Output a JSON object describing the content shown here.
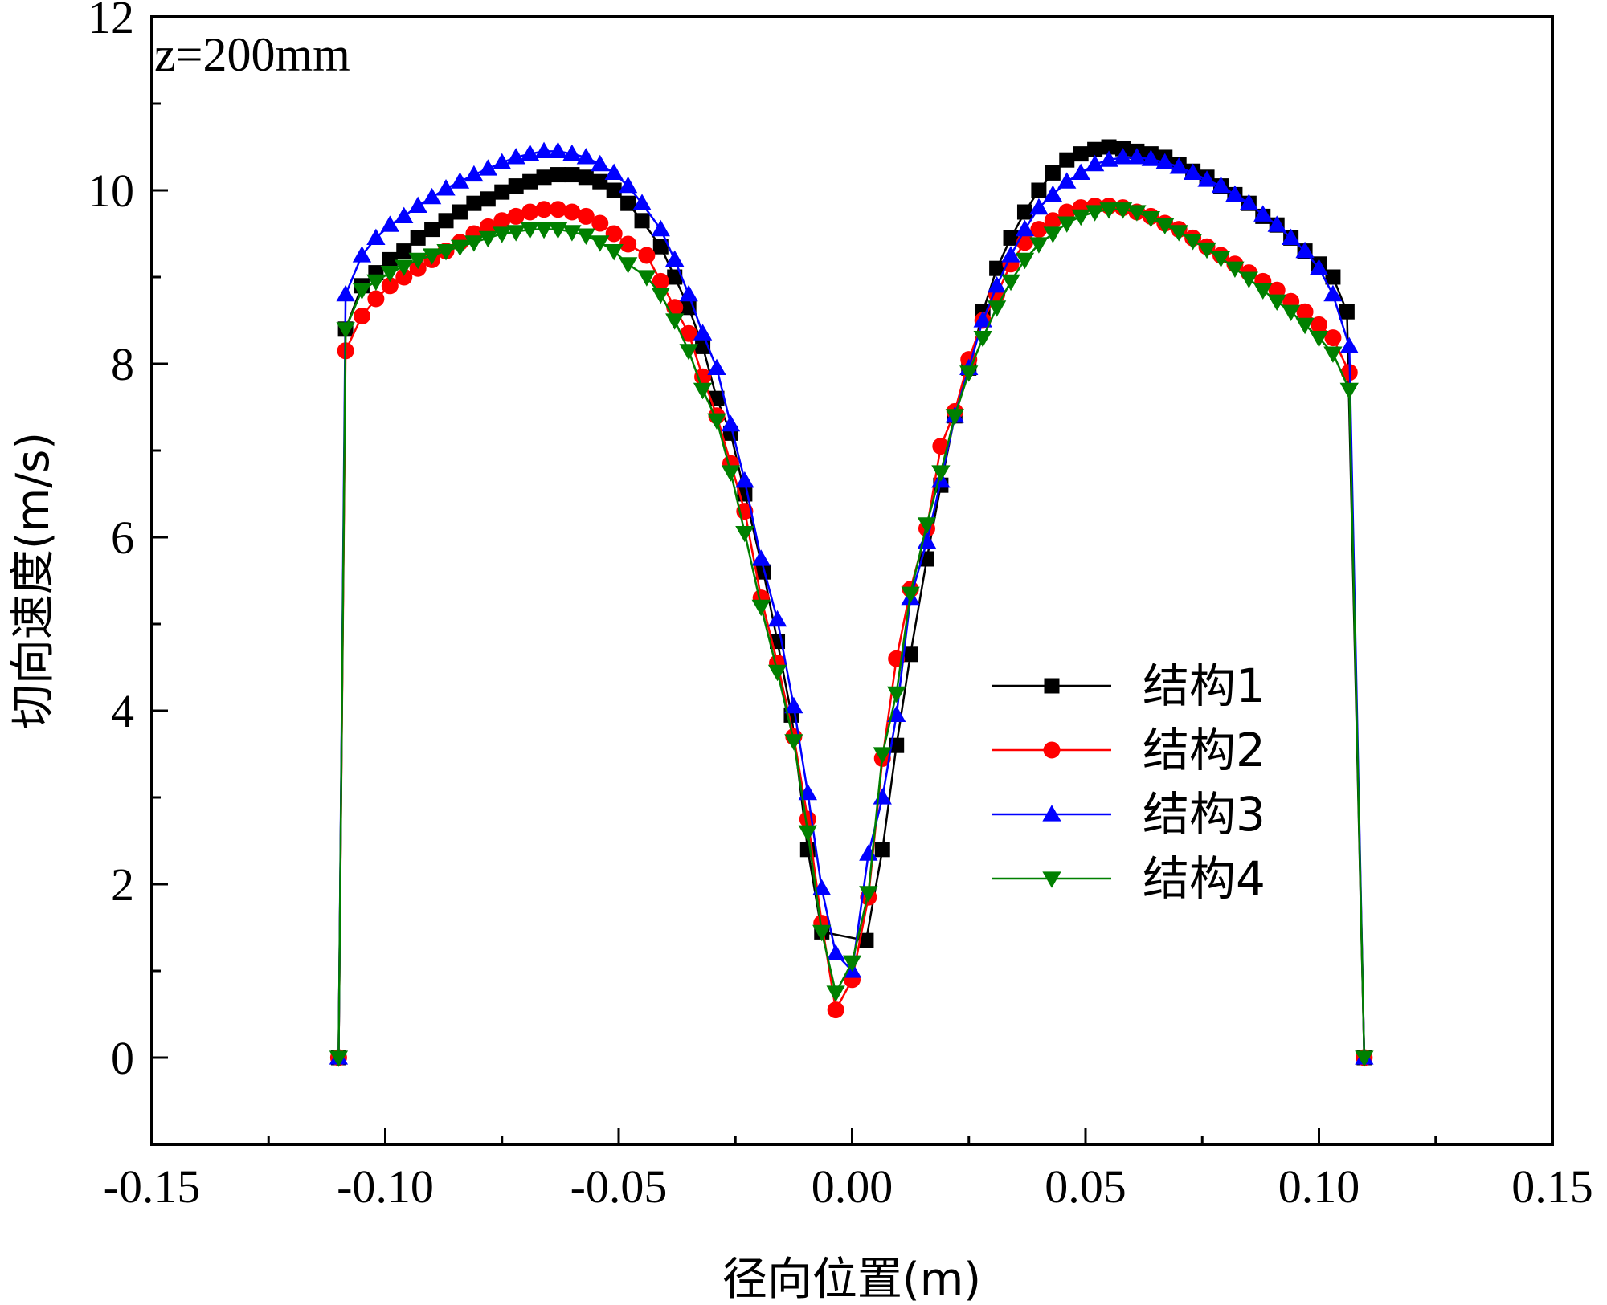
{
  "chart_data": {
    "type": "line",
    "title": "",
    "annotation": "z=200mm",
    "xlabel": "径向位置(m)",
    "ylabel": "切向速度(m/s)",
    "xlim": [
      -0.15,
      0.15
    ],
    "ylim": [
      -1,
      12
    ],
    "xticks": [
      -0.15,
      -0.1,
      -0.05,
      0.0,
      0.05,
      0.1,
      0.15
    ],
    "xtick_labels": [
      "-0.15",
      "-0.10",
      "-0.05",
      "0.00",
      "0.05",
      "0.10",
      "0.15"
    ],
    "yticks": [
      0,
      2,
      4,
      6,
      8,
      10,
      12
    ],
    "ytick_labels": [
      "0",
      "2",
      "4",
      "6",
      "8",
      "10",
      "12"
    ],
    "legend_position": "center-right",
    "series": [
      {
        "name": "结构1",
        "color": "#000000",
        "marker": "square",
        "points": [
          [
            -0.11,
            0
          ],
          [
            -0.1085,
            8.4
          ],
          [
            -0.105,
            8.9
          ],
          [
            -0.102,
            9.05
          ],
          [
            -0.099,
            9.2
          ],
          [
            -0.096,
            9.3
          ],
          [
            -0.093,
            9.45
          ],
          [
            -0.09,
            9.55
          ],
          [
            -0.087,
            9.65
          ],
          [
            -0.084,
            9.75
          ],
          [
            -0.081,
            9.85
          ],
          [
            -0.078,
            9.9
          ],
          [
            -0.075,
            9.98
          ],
          [
            -0.072,
            10.05
          ],
          [
            -0.069,
            10.1
          ],
          [
            -0.066,
            10.15
          ],
          [
            -0.063,
            10.18
          ],
          [
            -0.06,
            10.18
          ],
          [
            -0.057,
            10.15
          ],
          [
            -0.054,
            10.1
          ],
          [
            -0.051,
            10.0
          ],
          [
            -0.048,
            9.85
          ],
          [
            -0.045,
            9.65
          ],
          [
            -0.041,
            9.35
          ],
          [
            -0.038,
            9.0
          ],
          [
            -0.035,
            8.65
          ],
          [
            -0.032,
            8.2
          ],
          [
            -0.029,
            7.6
          ],
          [
            -0.026,
            7.2
          ],
          [
            -0.023,
            6.5
          ],
          [
            -0.019,
            5.6
          ],
          [
            -0.016,
            4.8
          ],
          [
            -0.013,
            3.95
          ],
          [
            -0.0095,
            2.4
          ],
          [
            -0.0065,
            1.45
          ],
          [
            0.003,
            1.35
          ],
          [
            0.0065,
            2.4
          ],
          [
            0.0095,
            3.6
          ],
          [
            0.0125,
            4.65
          ],
          [
            0.016,
            5.75
          ],
          [
            0.019,
            6.6
          ],
          [
            0.022,
            7.4
          ],
          [
            0.025,
            7.95
          ],
          [
            0.028,
            8.6
          ],
          [
            0.031,
            9.1
          ],
          [
            0.034,
            9.45
          ],
          [
            0.037,
            9.75
          ],
          [
            0.04,
            10.0
          ],
          [
            0.043,
            10.2
          ],
          [
            0.046,
            10.35
          ],
          [
            0.049,
            10.42
          ],
          [
            0.052,
            10.47
          ],
          [
            0.055,
            10.5
          ],
          [
            0.058,
            10.48
          ],
          [
            0.061,
            10.45
          ],
          [
            0.064,
            10.42
          ],
          [
            0.067,
            10.38
          ],
          [
            0.07,
            10.3
          ],
          [
            0.073,
            10.22
          ],
          [
            0.076,
            10.15
          ],
          [
            0.079,
            10.05
          ],
          [
            0.082,
            9.95
          ],
          [
            0.085,
            9.85
          ],
          [
            0.088,
            9.7
          ],
          [
            0.091,
            9.6
          ],
          [
            0.094,
            9.45
          ],
          [
            0.097,
            9.3
          ],
          [
            0.1,
            9.15
          ],
          [
            0.103,
            9.0
          ],
          [
            0.106,
            8.6
          ],
          [
            0.1097,
            0
          ]
        ]
      },
      {
        "name": "结构2",
        "color": "#ff0000",
        "marker": "circle",
        "points": [
          [
            -0.11,
            0
          ],
          [
            -0.1085,
            8.15
          ],
          [
            -0.105,
            8.55
          ],
          [
            -0.102,
            8.75
          ],
          [
            -0.099,
            8.9
          ],
          [
            -0.096,
            9.0
          ],
          [
            -0.093,
            9.1
          ],
          [
            -0.09,
            9.2
          ],
          [
            -0.087,
            9.3
          ],
          [
            -0.084,
            9.4
          ],
          [
            -0.081,
            9.5
          ],
          [
            -0.078,
            9.58
          ],
          [
            -0.075,
            9.65
          ],
          [
            -0.072,
            9.7
          ],
          [
            -0.069,
            9.75
          ],
          [
            -0.066,
            9.78
          ],
          [
            -0.063,
            9.78
          ],
          [
            -0.06,
            9.75
          ],
          [
            -0.057,
            9.7
          ],
          [
            -0.054,
            9.62
          ],
          [
            -0.051,
            9.5
          ],
          [
            -0.048,
            9.38
          ],
          [
            -0.044,
            9.25
          ],
          [
            -0.041,
            8.95
          ],
          [
            -0.038,
            8.65
          ],
          [
            -0.035,
            8.35
          ],
          [
            -0.032,
            7.85
          ],
          [
            -0.029,
            7.4
          ],
          [
            -0.026,
            6.85
          ],
          [
            -0.023,
            6.3
          ],
          [
            -0.0195,
            5.3
          ],
          [
            -0.016,
            4.55
          ],
          [
            -0.0125,
            3.7
          ],
          [
            -0.0095,
            2.75
          ],
          [
            -0.0065,
            1.55
          ],
          [
            -0.0035,
            0.55
          ],
          [
            0,
            0.9
          ],
          [
            0.0035,
            1.85
          ],
          [
            0.0065,
            3.45
          ],
          [
            0.0095,
            4.6
          ],
          [
            0.0125,
            5.4
          ],
          [
            0.016,
            6.1
          ],
          [
            0.019,
            7.05
          ],
          [
            0.022,
            7.45
          ],
          [
            0.025,
            8.05
          ],
          [
            0.028,
            8.5
          ],
          [
            0.031,
            8.8
          ],
          [
            0.034,
            9.15
          ],
          [
            0.037,
            9.4
          ],
          [
            0.04,
            9.55
          ],
          [
            0.043,
            9.65
          ],
          [
            0.046,
            9.75
          ],
          [
            0.049,
            9.8
          ],
          [
            0.052,
            9.82
          ],
          [
            0.055,
            9.82
          ],
          [
            0.058,
            9.8
          ],
          [
            0.061,
            9.75
          ],
          [
            0.064,
            9.7
          ],
          [
            0.067,
            9.62
          ],
          [
            0.07,
            9.55
          ],
          [
            0.073,
            9.45
          ],
          [
            0.076,
            9.35
          ],
          [
            0.079,
            9.25
          ],
          [
            0.082,
            9.15
          ],
          [
            0.085,
            9.05
          ],
          [
            0.088,
            8.95
          ],
          [
            0.091,
            8.85
          ],
          [
            0.094,
            8.72
          ],
          [
            0.097,
            8.6
          ],
          [
            0.1,
            8.45
          ],
          [
            0.103,
            8.3
          ],
          [
            0.1065,
            7.9
          ],
          [
            0.1097,
            0
          ]
        ]
      },
      {
        "name": "结构3",
        "color": "#0000ff",
        "marker": "triangle-up",
        "points": [
          [
            -0.11,
            0
          ],
          [
            -0.1085,
            8.8
          ],
          [
            -0.105,
            9.25
          ],
          [
            -0.102,
            9.45
          ],
          [
            -0.099,
            9.6
          ],
          [
            -0.096,
            9.7
          ],
          [
            -0.093,
            9.82
          ],
          [
            -0.09,
            9.92
          ],
          [
            -0.087,
            10.02
          ],
          [
            -0.084,
            10.1
          ],
          [
            -0.081,
            10.18
          ],
          [
            -0.078,
            10.25
          ],
          [
            -0.075,
            10.32
          ],
          [
            -0.072,
            10.38
          ],
          [
            -0.069,
            10.42
          ],
          [
            -0.066,
            10.45
          ],
          [
            -0.063,
            10.45
          ],
          [
            -0.06,
            10.42
          ],
          [
            -0.057,
            10.38
          ],
          [
            -0.054,
            10.3
          ],
          [
            -0.051,
            10.2
          ],
          [
            -0.048,
            10.05
          ],
          [
            -0.045,
            9.85
          ],
          [
            -0.041,
            9.55
          ],
          [
            -0.038,
            9.2
          ],
          [
            -0.035,
            8.8
          ],
          [
            -0.032,
            8.35
          ],
          [
            -0.029,
            7.95
          ],
          [
            -0.026,
            7.3
          ],
          [
            -0.023,
            6.65
          ],
          [
            -0.0195,
            5.75
          ],
          [
            -0.016,
            5.05
          ],
          [
            -0.0125,
            4.05
          ],
          [
            -0.0095,
            3.05
          ],
          [
            -0.0065,
            1.95
          ],
          [
            -0.0035,
            1.2
          ],
          [
            0,
            1.0
          ],
          [
            0.0035,
            2.35
          ],
          [
            0.0065,
            3.0
          ],
          [
            0.0095,
            3.95
          ],
          [
            0.0125,
            5.3
          ],
          [
            0.016,
            5.95
          ],
          [
            0.019,
            6.65
          ],
          [
            0.022,
            7.4
          ],
          [
            0.025,
            7.95
          ],
          [
            0.028,
            8.5
          ],
          [
            0.031,
            8.9
          ],
          [
            0.034,
            9.25
          ],
          [
            0.037,
            9.55
          ],
          [
            0.04,
            9.8
          ],
          [
            0.043,
            9.95
          ],
          [
            0.046,
            10.1
          ],
          [
            0.049,
            10.2
          ],
          [
            0.052,
            10.3
          ],
          [
            0.055,
            10.35
          ],
          [
            0.058,
            10.38
          ],
          [
            0.061,
            10.38
          ],
          [
            0.064,
            10.36
          ],
          [
            0.067,
            10.32
          ],
          [
            0.07,
            10.27
          ],
          [
            0.073,
            10.2
          ],
          [
            0.076,
            10.12
          ],
          [
            0.079,
            10.05
          ],
          [
            0.082,
            9.95
          ],
          [
            0.085,
            9.85
          ],
          [
            0.088,
            9.72
          ],
          [
            0.091,
            9.6
          ],
          [
            0.094,
            9.45
          ],
          [
            0.097,
            9.3
          ],
          [
            0.1,
            9.1
          ],
          [
            0.103,
            8.8
          ],
          [
            0.1065,
            8.2
          ],
          [
            0.1097,
            0
          ]
        ]
      },
      {
        "name": "结构4",
        "color": "#008000",
        "marker": "triangle-down",
        "points": [
          [
            -0.11,
            0
          ],
          [
            -0.1085,
            8.4
          ],
          [
            -0.105,
            8.85
          ],
          [
            -0.102,
            8.95
          ],
          [
            -0.099,
            9.05
          ],
          [
            -0.096,
            9.12
          ],
          [
            -0.093,
            9.2
          ],
          [
            -0.09,
            9.25
          ],
          [
            -0.087,
            9.3
          ],
          [
            -0.084,
            9.35
          ],
          [
            -0.081,
            9.4
          ],
          [
            -0.078,
            9.45
          ],
          [
            -0.075,
            9.5
          ],
          [
            -0.072,
            9.52
          ],
          [
            -0.069,
            9.55
          ],
          [
            -0.066,
            9.55
          ],
          [
            -0.063,
            9.55
          ],
          [
            -0.06,
            9.52
          ],
          [
            -0.057,
            9.48
          ],
          [
            -0.054,
            9.4
          ],
          [
            -0.051,
            9.3
          ],
          [
            -0.048,
            9.15
          ],
          [
            -0.044,
            9.0
          ],
          [
            -0.041,
            8.8
          ],
          [
            -0.038,
            8.5
          ],
          [
            -0.035,
            8.15
          ],
          [
            -0.032,
            7.7
          ],
          [
            -0.029,
            7.35
          ],
          [
            -0.026,
            6.75
          ],
          [
            -0.023,
            6.05
          ],
          [
            -0.0195,
            5.2
          ],
          [
            -0.016,
            4.45
          ],
          [
            -0.0125,
            3.65
          ],
          [
            -0.0095,
            2.6
          ],
          [
            -0.0065,
            1.45
          ],
          [
            -0.0035,
            0.75
          ],
          [
            0,
            1.1
          ],
          [
            0.0035,
            1.9
          ],
          [
            0.0065,
            3.5
          ],
          [
            0.0095,
            4.2
          ],
          [
            0.0125,
            5.35
          ],
          [
            0.016,
            6.15
          ],
          [
            0.019,
            6.75
          ],
          [
            0.022,
            7.4
          ],
          [
            0.025,
            7.9
          ],
          [
            0.028,
            8.3
          ],
          [
            0.031,
            8.65
          ],
          [
            0.034,
            8.95
          ],
          [
            0.037,
            9.2
          ],
          [
            0.04,
            9.38
          ],
          [
            0.043,
            9.5
          ],
          [
            0.046,
            9.62
          ],
          [
            0.049,
            9.7
          ],
          [
            0.052,
            9.75
          ],
          [
            0.055,
            9.78
          ],
          [
            0.058,
            9.78
          ],
          [
            0.061,
            9.75
          ],
          [
            0.064,
            9.68
          ],
          [
            0.067,
            9.6
          ],
          [
            0.07,
            9.52
          ],
          [
            0.073,
            9.42
          ],
          [
            0.076,
            9.32
          ],
          [
            0.079,
            9.22
          ],
          [
            0.082,
            9.1
          ],
          [
            0.085,
            8.98
          ],
          [
            0.088,
            8.85
          ],
          [
            0.091,
            8.72
          ],
          [
            0.094,
            8.6
          ],
          [
            0.097,
            8.45
          ],
          [
            0.1,
            8.3
          ],
          [
            0.103,
            8.12
          ],
          [
            0.1065,
            7.7
          ],
          [
            0.1097,
            0
          ]
        ]
      }
    ]
  }
}
